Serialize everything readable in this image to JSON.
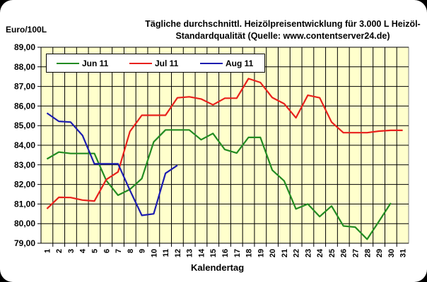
{
  "chart_data": {
    "type": "line",
    "title": "Tägliche durchschnittl. Heizölpreisentwicklung für 3.000 L Heizöl-Standardqualität (Quelle: www.contentserver24.de)",
    "title_lines": [
      "Tägliche durchschnittl. Heizölpreisentwicklung für 3.000 L Heizöl-",
      "Standardqualität (Quelle: www.contentserver24.de)"
    ],
    "xlabel": "Kalendertag",
    "ylabel": "Euro/100L",
    "ylim": [
      79,
      89
    ],
    "yticks": [
      "89,00",
      "88,00",
      "87,00",
      "86,00",
      "85,00",
      "84,00",
      "83,00",
      "82,00",
      "81,00",
      "80,00",
      "79,00"
    ],
    "categories": [
      "1",
      "2",
      "3",
      "4",
      "5",
      "6",
      "7",
      "8",
      "9",
      "10",
      "11",
      "12",
      "13",
      "14",
      "15",
      "16",
      "17",
      "18",
      "19",
      "20",
      "21",
      "22",
      "23",
      "24",
      "25",
      "26",
      "27",
      "28",
      "29",
      "30",
      "31"
    ],
    "grid": true,
    "plot_background": "#FFFFCC",
    "legend_position": "top-left inside",
    "series": [
      {
        "name": "Jun 11",
        "color": "#228B22",
        "values": [
          83.3,
          83.65,
          83.58,
          83.58,
          83.58,
          82.2,
          81.45,
          81.75,
          82.3,
          84.17,
          84.78,
          84.78,
          84.78,
          84.28,
          84.6,
          83.78,
          83.6,
          84.4,
          84.4,
          82.73,
          82.18,
          80.75,
          81.0,
          80.36,
          80.9,
          79.88,
          79.82,
          79.2,
          80.12,
          81.05,
          null
        ]
      },
      {
        "name": "Jul 11",
        "color": "#E8201C",
        "values": [
          80.76,
          81.34,
          81.33,
          81.2,
          81.15,
          82.25,
          82.64,
          84.7,
          85.53,
          85.53,
          85.53,
          86.42,
          86.47,
          86.36,
          86.06,
          86.4,
          86.4,
          87.4,
          87.2,
          86.43,
          86.12,
          85.4,
          86.55,
          86.42,
          85.18,
          84.64,
          84.64,
          84.64,
          84.72,
          84.76,
          84.76
        ]
      },
      {
        "name": "Aug 11",
        "color": "#1C1CB0",
        "values": [
          85.64,
          85.22,
          85.18,
          84.5,
          83.05,
          83.05,
          83.05,
          81.7,
          80.42,
          80.5,
          82.57,
          82.97,
          null,
          null,
          null,
          null,
          null,
          null,
          null,
          null,
          null,
          null,
          null,
          null,
          null,
          null,
          null,
          null,
          null,
          null,
          null
        ]
      }
    ]
  },
  "legend": [
    {
      "label": "Jun 11",
      "color": "#228B22"
    },
    {
      "label": "Jul 11",
      "color": "#E8201C"
    },
    {
      "label": "Aug 11",
      "color": "#1C1CB0"
    }
  ]
}
